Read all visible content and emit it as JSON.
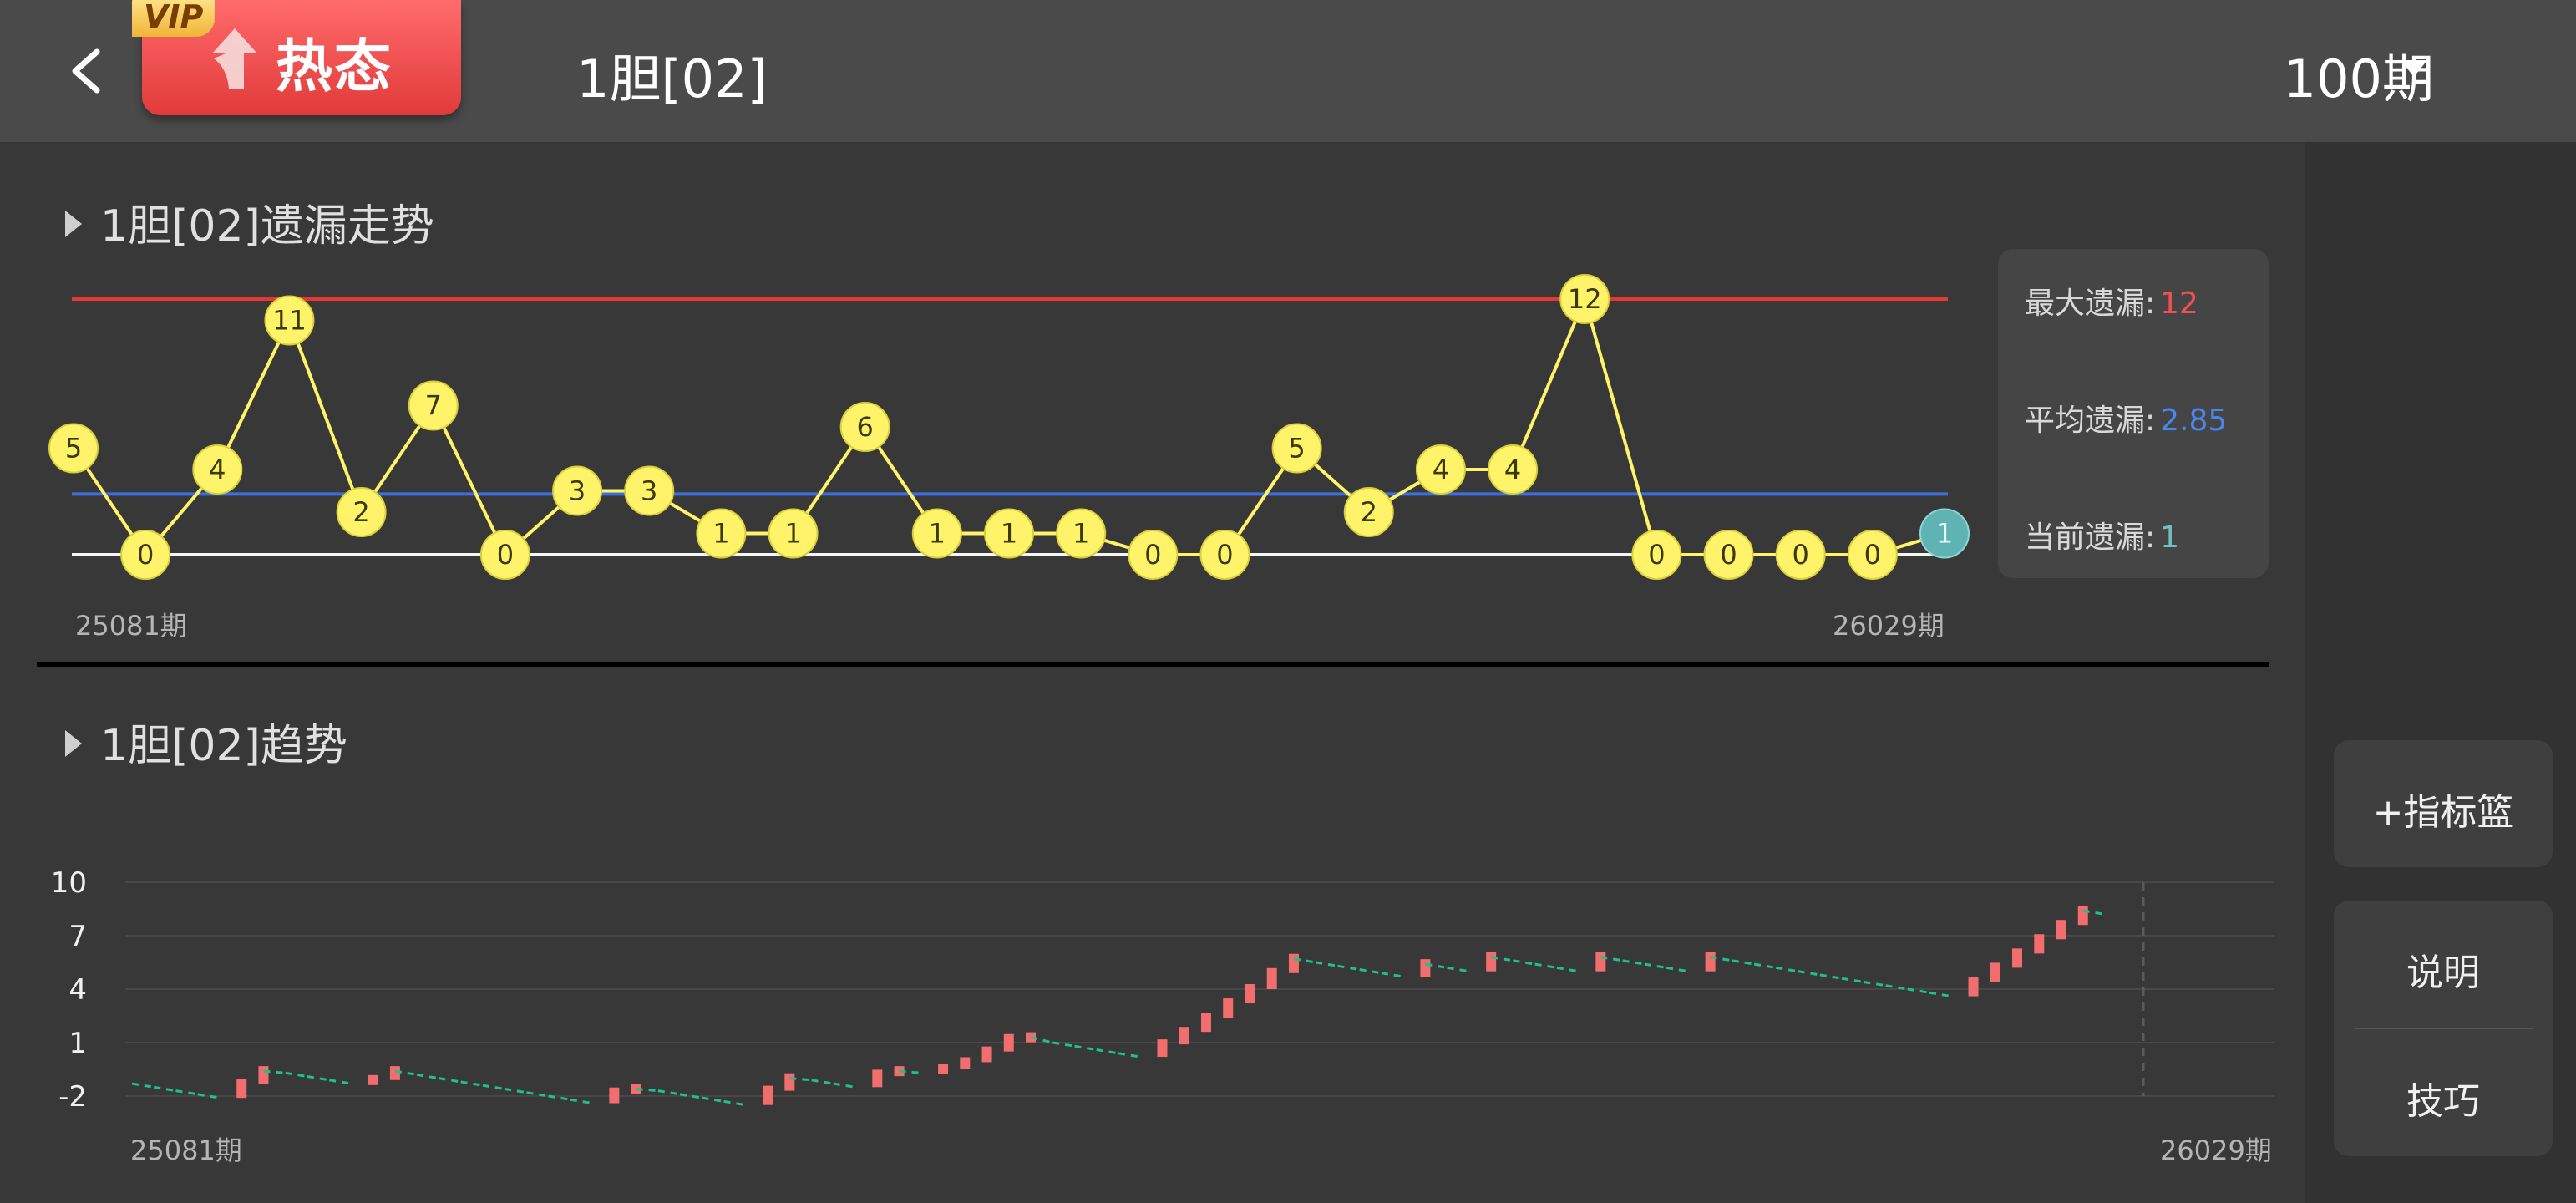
{
  "header": {
    "vip": "VIP",
    "hot_label": "热态",
    "title": "1胆[02]",
    "period": "100期"
  },
  "section1": {
    "title": "1胆[02]遗漏走势"
  },
  "section2": {
    "title": "1胆[02]趋势"
  },
  "stats": {
    "max_label": "最大遗漏:",
    "max_value": "12",
    "avg_label": "平均遗漏:",
    "avg_value": "2.85",
    "cur_label": "当前遗漏:",
    "cur_value": "1"
  },
  "side": {
    "basket": "+指标篮",
    "explain": "说明",
    "tips": "技巧"
  },
  "colors": {
    "point": "#fff36a",
    "point_text": "#3a3a00",
    "current_point": "#5fb3b3",
    "max_line": "#e53935",
    "avg_line": "#3b6fe0",
    "zero_line": "#f5f5f5",
    "trend_line": "#1fbf8f",
    "trend_up": "#f26d6d",
    "max_text": "#f05050",
    "avg_text": "#4a86f0",
    "cur_text": "#6fc0c0"
  },
  "chart_data": [
    {
      "type": "line",
      "title": "1胆[02]遗漏走势",
      "x_start_label": "25081期",
      "x_end_label": "26029期",
      "values": [
        5,
        0,
        4,
        11,
        2,
        7,
        0,
        3,
        3,
        1,
        1,
        6,
        1,
        1,
        1,
        0,
        0,
        5,
        2,
        4,
        4,
        12,
        0,
        0,
        0,
        0,
        1
      ],
      "max_line": 12,
      "avg_line": 2.85,
      "ylim": [
        0,
        12
      ],
      "current_highlight_index": 26
    },
    {
      "type": "line",
      "title": "1胆[02]趋势",
      "x_start_label": "25081期",
      "x_end_label": "26029期",
      "yticks": [
        10,
        7,
        4,
        1,
        -2
      ],
      "ylim": [
        -2,
        10
      ],
      "values": [
        -1.3,
        -1.5,
        -1.7,
        -1.9,
        -2.1,
        -1.3,
        -0.6,
        -0.7,
        -0.9,
        -1.1,
        -1.3,
        -1.1,
        -0.6,
        -0.8,
        -1.0,
        -1.2,
        -1.4,
        -1.6,
        -1.8,
        -2.0,
        -2.2,
        -2.4,
        -1.8,
        -1.6,
        -1.7,
        -1.9,
        -2.1,
        -2.3,
        -2.5,
        -1.7,
        -1.0,
        -1.1,
        -1.3,
        -1.5,
        -0.8,
        -0.6,
        -0.7,
        -0.5,
        -0.1,
        0.5,
        1.2,
        1.3,
        1.0,
        0.8,
        0.6,
        0.4,
        0.2,
        0.9,
        1.6,
        2.4,
        3.2,
        4.0,
        4.9,
        5.7,
        5.5,
        5.3,
        5.1,
        4.9,
        4.7,
        5.4,
        5.2,
        5.0,
        5.8,
        5.6,
        5.4,
        5.2,
        5.0,
        5.8,
        5.6,
        5.4,
        5.2,
        5.0,
        5.8,
        5.6,
        5.4,
        5.2,
        5.0,
        4.8,
        4.6,
        4.4,
        4.2,
        4.0,
        3.8,
        3.6,
        4.4,
        5.2,
        6.0,
        6.8,
        7.6,
        8.4,
        8.2
      ]
    }
  ]
}
